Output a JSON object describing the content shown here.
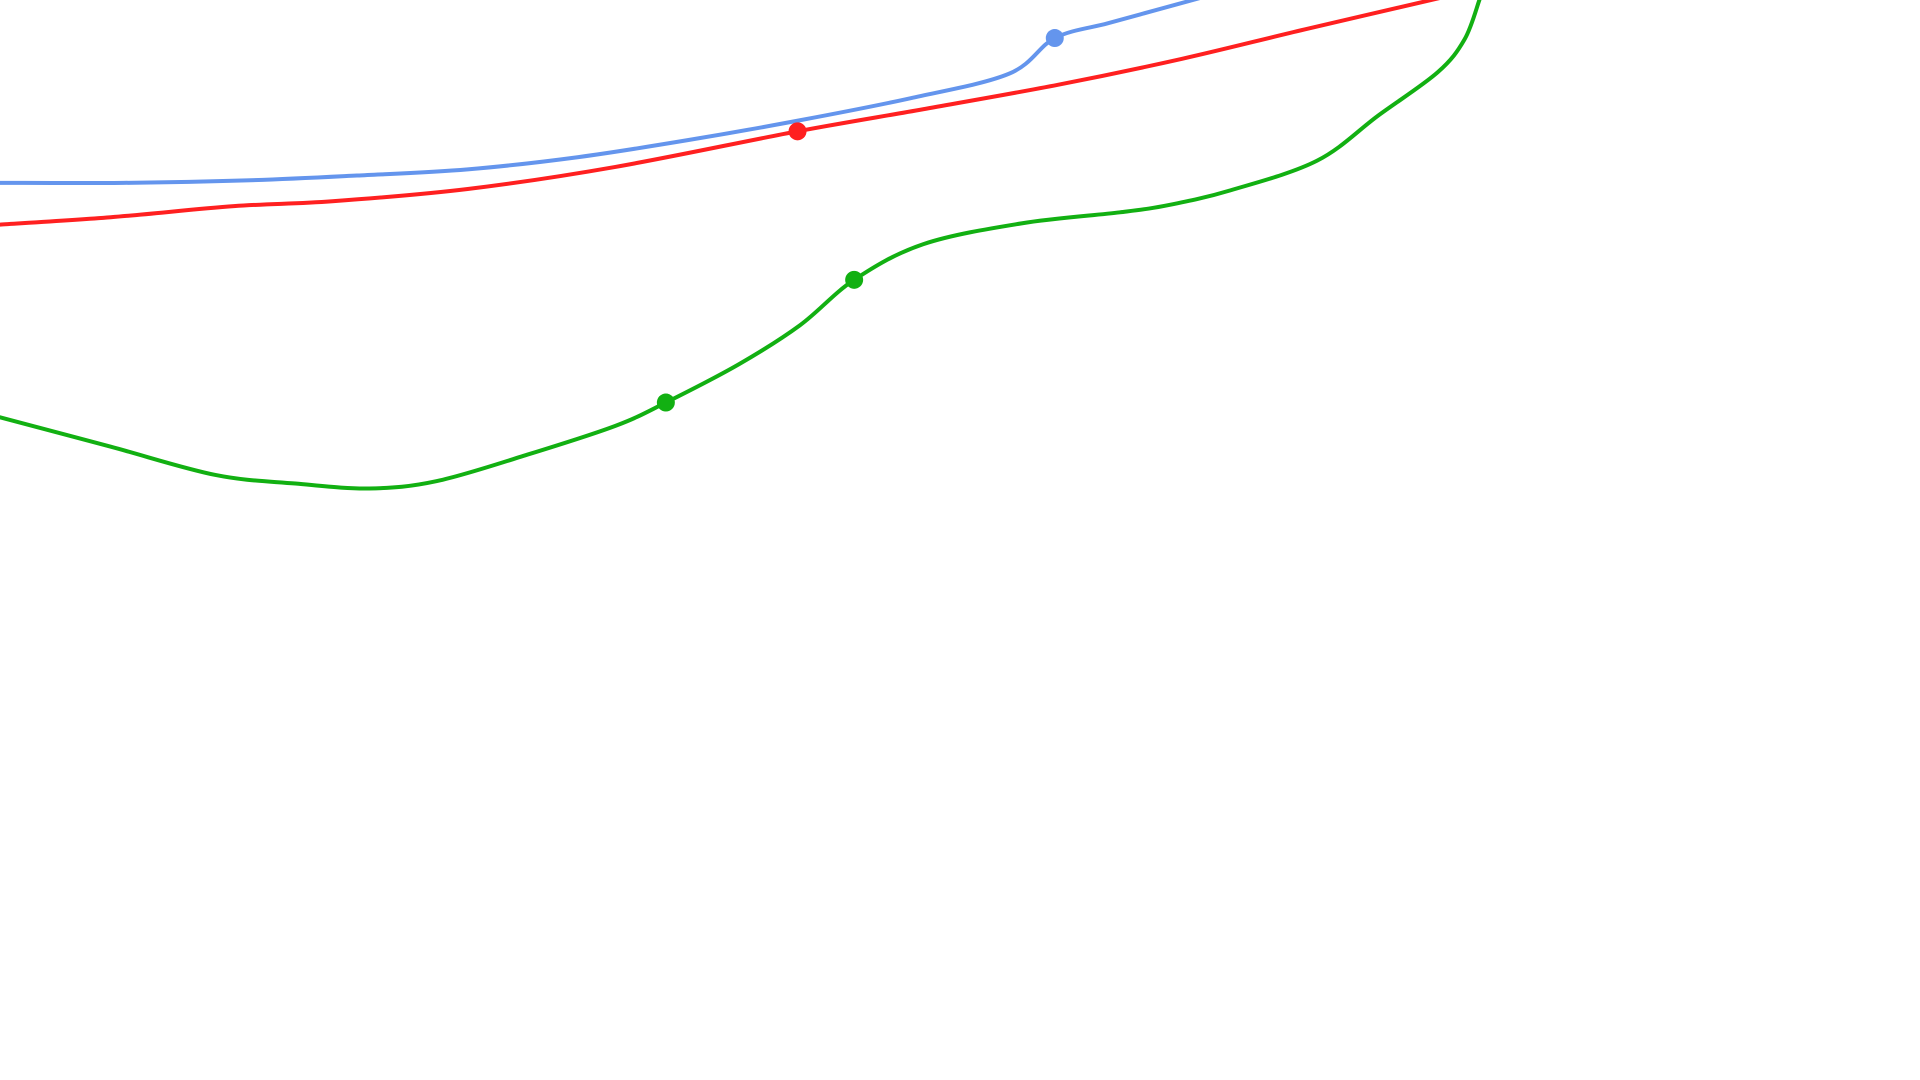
{
  "chart_data": {
    "type": "line",
    "title": "",
    "xlabel": "",
    "ylabel": "",
    "grid": false,
    "legend": "none",
    "xlim": [
      0,
      1560
    ],
    "ylim": [
      0,
      880
    ],
    "series": [
      {
        "color": "#6495ed",
        "points": [
          [
            0,
            731
          ],
          [
            100,
            731
          ],
          [
            200,
            733
          ],
          [
            290,
            737
          ],
          [
            380,
            742
          ],
          [
            470,
            752
          ],
          [
            560,
            766
          ],
          [
            650,
            782
          ],
          [
            740,
            800
          ],
          [
            820,
            820
          ],
          [
            857,
            849
          ],
          [
            900,
            861
          ],
          [
            940,
            872
          ],
          [
            980,
            883
          ]
        ],
        "markers": [
          [
            857,
            849
          ]
        ]
      },
      {
        "color": "#ff2020",
        "points": [
          [
            0,
            697
          ],
          [
            90,
            703
          ],
          [
            190,
            712
          ],
          [
            270,
            716
          ],
          [
            380,
            726
          ],
          [
            500,
            744
          ],
          [
            648,
            773
          ],
          [
            750,
            791
          ],
          [
            860,
            811
          ],
          [
            960,
            832
          ],
          [
            1060,
            856
          ],
          [
            1180,
            884
          ]
        ],
        "markers": [
          [
            648,
            773
          ]
        ]
      },
      {
        "color": "#12b012",
        "points": [
          [
            0,
            540
          ],
          [
            90,
            516
          ],
          [
            175,
            493
          ],
          [
            240,
            486
          ],
          [
            300,
            482
          ],
          [
            355,
            488
          ],
          [
            430,
            510
          ],
          [
            500,
            533
          ],
          [
            541,
            552
          ],
          [
            600,
            583
          ],
          [
            650,
            615
          ],
          [
            694,
            652
          ],
          [
            750,
            681
          ],
          [
            830,
            698
          ],
          [
            910,
            707
          ],
          [
            950,
            713
          ],
          [
            1000,
            725
          ],
          [
            1070,
            749
          ],
          [
            1120,
            786
          ],
          [
            1168,
            821
          ],
          [
            1190,
            848
          ],
          [
            1202,
            880
          ]
        ],
        "markers": [
          [
            541,
            552
          ],
          [
            694,
            652
          ]
        ]
      }
    ]
  }
}
